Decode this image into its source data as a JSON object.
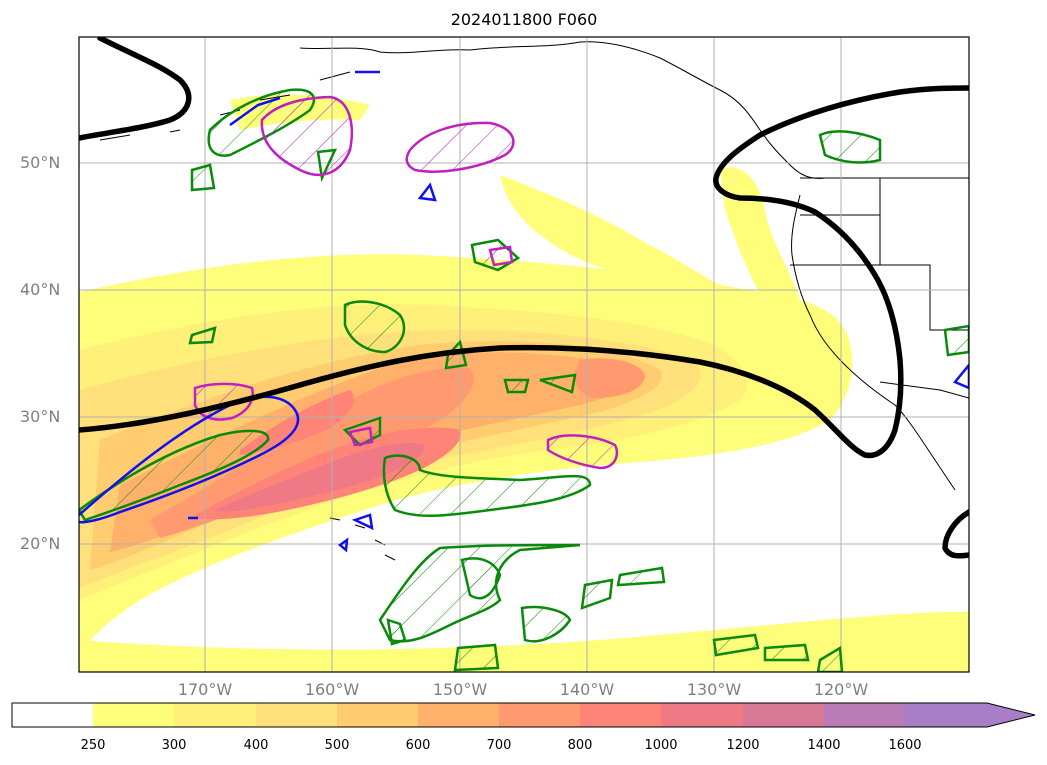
{
  "title": "2024011800 F060",
  "map": {
    "lat_labels": [
      "50°N",
      "40°N",
      "30°N",
      "20°N"
    ],
    "lon_labels": [
      "170°W",
      "160°W",
      "150°W",
      "140°W",
      "130°W",
      "120°W"
    ]
  },
  "colorbar": {
    "ticks": [
      "250",
      "300",
      "400",
      "500",
      "600",
      "700",
      "800",
      "1000",
      "1200",
      "1400",
      "1600"
    ],
    "colors": [
      "#ffffff",
      "#fefe7a",
      "#fff07a",
      "#ffe07a",
      "#ffcc70",
      "#ffb06a",
      "#ff9a70",
      "#ff8478",
      "#ef7a86",
      "#d77896",
      "#b97cb6",
      "#a97ec8"
    ],
    "extend": "max"
  },
  "colors": {
    "jet_line": "#000000",
    "green_contour": "#0a8a0a",
    "magenta_contour": "#c020c0",
    "blue_contour": "#1010ee",
    "coastline": "#000000"
  }
}
